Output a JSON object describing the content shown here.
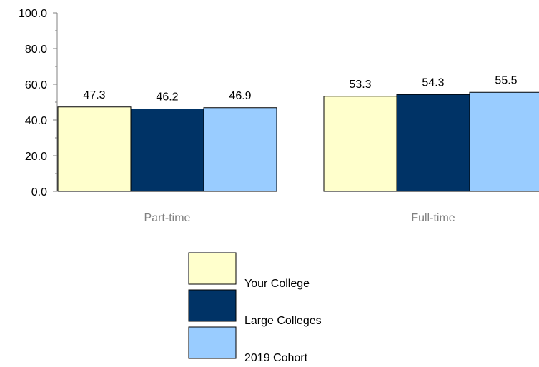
{
  "chart_data": {
    "type": "bar",
    "categories": [
      "Part-time",
      "Full-time"
    ],
    "series": [
      {
        "name": "Your College",
        "values": [
          47.3,
          53.3
        ],
        "color": "#FFFFCC"
      },
      {
        "name": "Large Colleges",
        "values": [
          46.2,
          54.3
        ],
        "color": "#003366"
      },
      {
        "name": "2019 Cohort",
        "values": [
          46.9,
          55.5
        ],
        "color": "#99CCFF"
      }
    ],
    "value_labels": [
      [
        "47.3",
        "53.3"
      ],
      [
        "46.2",
        "54.3"
      ],
      [
        "46.9",
        "55.5"
      ]
    ],
    "yticks": [
      "0.0",
      "20.0",
      "40.0",
      "60.0",
      "80.0",
      "100.0"
    ],
    "ytick_values": [
      0,
      20,
      40,
      60,
      80,
      100
    ],
    "ylim": [
      0,
      100
    ],
    "title": "",
    "xlabel": "",
    "ylabel": "",
    "grid": false,
    "legend_position": "bottom-center"
  }
}
